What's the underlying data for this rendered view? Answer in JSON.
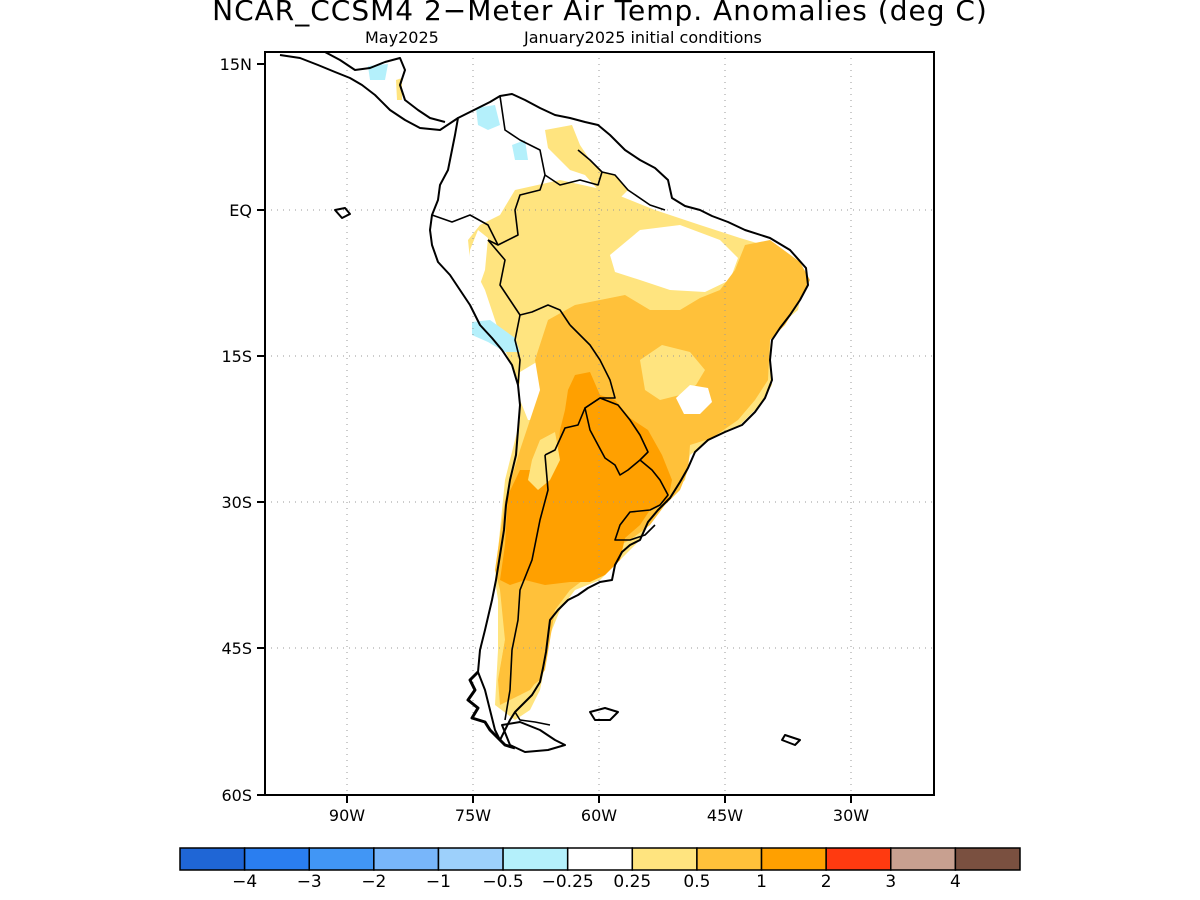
{
  "title": "NCAR_CCSM4 2−Meter Air Temp. Anomalies (deg C)",
  "subtitle_left": "May2025",
  "subtitle_right": "January2025 initial conditions",
  "lat_labels": [
    "15N",
    "EQ",
    "15S",
    "30S",
    "45S",
    "60S"
  ],
  "lon_labels": [
    "90W",
    "75W",
    "60W",
    "45W",
    "30W"
  ],
  "colorbar": {
    "colors": [
      "#1f66d6",
      "#2a7ef0",
      "#4196f5",
      "#78b6fa",
      "#9dd0fb",
      "#b4f0fb",
      "#ffffff",
      "#ffe47f",
      "#ffc13a",
      "#ffa000",
      "#ff3a10",
      "#c8a090",
      "#7a5040"
    ],
    "labels": [
      "−4",
      "−3",
      "−2",
      "−1",
      "−0.5",
      "−0.25",
      "0.25",
      "0.5",
      "1",
      "2",
      "3",
      "4"
    ]
  },
  "legend_colors": {
    "pale_yellow": "#ffe47f",
    "light_orange": "#ffc13a",
    "orange": "#ffa000",
    "pale_cyan": "#b4f0fb"
  }
}
